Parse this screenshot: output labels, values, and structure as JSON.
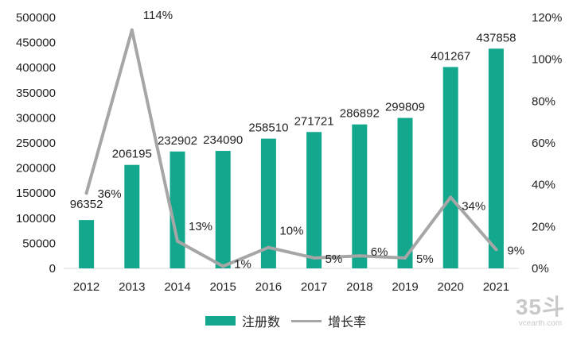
{
  "chart_data": {
    "type": "bar",
    "categories": [
      "2012",
      "2013",
      "2014",
      "2015",
      "2016",
      "2017",
      "2018",
      "2019",
      "2020",
      "2021"
    ],
    "series": [
      {
        "name": "注册数",
        "type": "bar",
        "axis": "left",
        "values": [
          96352,
          206195,
          232902,
          234090,
          258510,
          271721,
          286892,
          299809,
          401267,
          437858
        ],
        "labels": [
          "96352",
          "206195",
          "232902",
          "234090",
          "258510",
          "271721",
          "286892",
          "299809",
          "401267",
          "437858"
        ]
      },
      {
        "name": "增长率",
        "type": "line",
        "axis": "right",
        "values": [
          36,
          114,
          13,
          1,
          10,
          5,
          6,
          5,
          34,
          9
        ],
        "labels": [
          "36%",
          "114%",
          "13%",
          "1%",
          "10%",
          "5%",
          "6%",
          "5%",
          "34%",
          "9%"
        ]
      }
    ],
    "y_left": {
      "min": 0,
      "max": 500000,
      "ticks": [
        "0",
        "50000",
        "100000",
        "150000",
        "200000",
        "250000",
        "300000",
        "350000",
        "400000",
        "450000",
        "500000"
      ]
    },
    "y_right": {
      "min": 0,
      "max": 120,
      "unit": "%",
      "ticks": [
        "0%",
        "20%",
        "40%",
        "60%",
        "80%",
        "100%",
        "120%"
      ]
    },
    "colors": {
      "bar": "#13a88e",
      "line": "#a6a6a6",
      "axis": "#d9d9d9"
    },
    "legend_position": "bottom",
    "grid": false,
    "title": "",
    "xlabel": "",
    "ylabel": ""
  },
  "legend": {
    "bar_label": "注册数",
    "line_label": "增长率"
  },
  "watermark": {
    "big": "35斗",
    "small": "vcearth.com"
  }
}
